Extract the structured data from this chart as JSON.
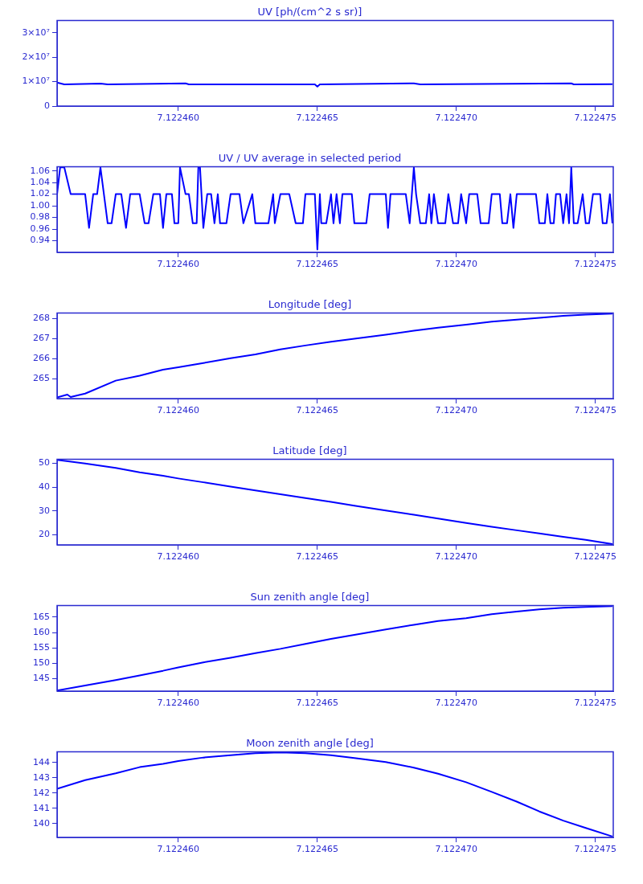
{
  "chart_data": [
    {
      "type": "line",
      "title": "UV [ph/(cm^2 s sr)]",
      "color": "#0000ff",
      "grid": false,
      "marker": "none",
      "line_style": "solid",
      "x": [
        7.12245564,
        7.1224559,
        7.1224572,
        7.12245746,
        7.12246026,
        7.12246038,
        7.12246491,
        7.122465,
        7.12246509,
        7.12246847,
        7.1224687,
        7.12247413,
        7.12247422,
        7.12247561
      ],
      "values": [
        9600000,
        8900000,
        9200000,
        8900000,
        9300000,
        8900000,
        8900000,
        8000000,
        8900000,
        9300000,
        8900000,
        9300000,
        8900000,
        9000000
      ],
      "xlim": [
        7.12245564,
        7.12247564
      ],
      "xticks": [
        {
          "value": 7.12246,
          "label": "7.122460"
        },
        {
          "value": 7.122465,
          "label": "7.122465"
        },
        {
          "value": 7.12247,
          "label": "7.122470"
        },
        {
          "value": 7.122475,
          "label": "7.122475"
        }
      ],
      "ylim": [
        0,
        35000000
      ],
      "yticks": [
        {
          "value": 0,
          "label": "0"
        },
        {
          "value": 10000000,
          "label": "1×10⁷"
        },
        {
          "value": 20000000,
          "label": "2×10⁷"
        },
        {
          "value": 30000000,
          "label": "3×10⁷"
        }
      ]
    },
    {
      "type": "line",
      "title": "UV / UV average in selected period",
      "color": "#0000ff",
      "grid": false,
      "marker": "none",
      "line_style": "solid",
      "x": [
        7.12245564,
        7.12245575,
        7.1224559,
        7.12245613,
        7.12245665,
        7.12245679,
        7.12245694,
        7.12245708,
        7.1224572,
        7.12245746,
        7.1224576,
        7.12245775,
        7.12245795,
        7.12245812,
        7.12245827,
        7.12245861,
        7.12245879,
        7.12245893,
        7.1224591,
        7.12245934,
        7.12245945,
        7.12245957,
        7.12245977,
        7.12245986,
        7.12246,
        7.12246006,
        7.12246026,
        7.12246038,
        7.12246052,
        7.12246066,
        7.12246072,
        7.12246078,
        7.1224609,
        7.12246104,
        7.12246118,
        7.1224613,
        7.12246142,
        7.1224615,
        7.12246173,
        7.12246188,
        7.1224622,
        7.12246234,
        7.12246266,
        7.12246277,
        7.12246324,
        7.12246341,
        7.12246347,
        7.12246367,
        7.12246399,
        7.12246422,
        7.12246448,
        7.12246457,
        7.12246491,
        7.122465,
        7.12246509,
        7.12246514,
        7.12246532,
        7.12246549,
        7.12246558,
        7.12246569,
        7.12246581,
        7.1224659,
        7.12246624,
        7.12246633,
        7.12246676,
        7.12246688,
        7.12246746,
        7.12246754,
        7.12246763,
        7.12246818,
        7.12246832,
        7.12246847,
        7.12246855,
        7.1224687,
        7.1224689,
        7.12246902,
        7.1224691,
        7.12246919,
        7.12246934,
        7.1224696,
        7.12246971,
        7.12246988,
        7.12247006,
        7.12247017,
        7.12247035,
        7.12247046,
        7.12247075,
        7.12247087,
        7.12247116,
        7.12247127,
        7.12247156,
        7.12247165,
        7.12247182,
        7.12247194,
        7.12247205,
        7.12247217,
        7.12247286,
        7.12247298,
        7.12247318,
        7.12247327,
        7.12247338,
        7.1224735,
        7.12247358,
        7.12247373,
        7.12247384,
        7.12247396,
        7.12247405,
        7.12247413,
        7.12247422,
        7.12247436,
        7.12247454,
        7.12247465,
        7.12247477,
        7.12247491,
        7.12247517,
        7.12247526,
        7.1224754,
        7.12247552,
        7.12247561
      ],
      "values": [
        1.02,
        1.066,
        1.066,
        1.02,
        1.02,
        0.962,
        1.02,
        1.02,
        1.066,
        0.97,
        0.97,
        1.02,
        1.02,
        0.962,
        1.02,
        1.02,
        0.97,
        0.97,
        1.02,
        1.02,
        0.962,
        1.02,
        1.02,
        0.97,
        0.97,
        1.066,
        1.02,
        1.02,
        0.97,
        0.97,
        1.066,
        1.066,
        0.962,
        1.02,
        1.02,
        0.97,
        1.02,
        0.97,
        0.97,
        1.02,
        1.02,
        0.97,
        1.02,
        0.97,
        0.97,
        1.02,
        0.97,
        1.02,
        1.02,
        0.97,
        0.97,
        1.02,
        1.02,
        0.925,
        1.02,
        0.97,
        0.97,
        1.02,
        0.97,
        1.02,
        0.97,
        1.02,
        1.02,
        0.97,
        0.97,
        1.02,
        1.02,
        0.962,
        1.02,
        1.02,
        0.97,
        1.066,
        1.02,
        0.97,
        0.97,
        1.02,
        0.97,
        1.02,
        0.97,
        0.97,
        1.02,
        0.97,
        0.97,
        1.02,
        0.97,
        1.02,
        1.02,
        0.97,
        0.97,
        1.02,
        1.02,
        0.97,
        0.97,
        1.02,
        0.962,
        1.02,
        1.02,
        0.97,
        0.97,
        1.02,
        0.97,
        0.97,
        1.02,
        1.02,
        0.97,
        1.02,
        0.97,
        1.066,
        0.97,
        0.97,
        1.02,
        0.97,
        0.97,
        1.02,
        1.02,
        0.97,
        0.97,
        1.02,
        0.97
      ],
      "xlim": [
        7.12245564,
        7.12247564
      ],
      "xticks": [
        {
          "value": 7.12246,
          "label": "7.122460"
        },
        {
          "value": 7.122465,
          "label": "7.122465"
        },
        {
          "value": 7.12247,
          "label": "7.122470"
        },
        {
          "value": 7.122475,
          "label": "7.122475"
        }
      ],
      "ylim": [
        0.92,
        1.067
      ],
      "yticks": [
        0.94,
        0.96,
        0.98,
        {
          "value": 1,
          "label": "1.00"
        },
        1.02,
        1.04,
        1.06
      ]
    },
    {
      "type": "line",
      "title": "Longitude [deg]",
      "color": "#0000ff",
      "grid": false,
      "marker": "none",
      "line_style": "solid",
      "x": [
        7.12245564,
        7.12245601,
        7.12245613,
        7.12245665,
        7.12245775,
        7.12245861,
        7.12245945,
        7.12246,
        7.1224609,
        7.12246188,
        7.12246277,
        7.12246367,
        7.12246457,
        7.12246549,
        7.12246633,
        7.12246746,
        7.12246847,
        7.12246934,
        7.12247035,
        7.12247127,
        7.12247217,
        7.12247298,
        7.12247384,
        7.12247465,
        7.12247561
      ],
      "values": [
        264.06,
        264.2,
        264.08,
        264.25,
        264.9,
        265.15,
        265.45,
        265.57,
        265.78,
        266.02,
        266.21,
        266.46,
        266.66,
        266.85,
        267.0,
        267.2,
        267.4,
        267.55,
        267.7,
        267.85,
        267.95,
        268.04,
        268.14,
        268.2,
        268.25
      ],
      "xlim": [
        7.12245564,
        7.12247564
      ],
      "xticks": [
        {
          "value": 7.12246,
          "label": "7.122460"
        },
        {
          "value": 7.122465,
          "label": "7.122465"
        },
        {
          "value": 7.12247,
          "label": "7.122470"
        },
        {
          "value": 7.122475,
          "label": "7.122475"
        }
      ],
      "ylim": [
        264.0,
        268.28
      ],
      "yticks": [
        265,
        266,
        267,
        268
      ]
    },
    {
      "type": "line",
      "title": "Latitude [deg]",
      "color": "#0000ff",
      "grid": false,
      "marker": "none",
      "line_style": "solid",
      "x": [
        7.12245564,
        7.12245665,
        7.12245775,
        7.12245861,
        7.12245945,
        7.12246,
        7.1224609,
        7.12246188,
        7.12246277,
        7.12246367,
        7.12246457,
        7.12246549,
        7.12246633,
        7.12246746,
        7.12246847,
        7.12246934,
        7.12247035,
        7.12247127,
        7.12247217,
        7.12247298,
        7.12247384,
        7.12247465,
        7.12247561
      ],
      "values": [
        51.4,
        49.9,
        48.0,
        46.2,
        44.7,
        43.6,
        42.0,
        40.2,
        38.6,
        37.0,
        35.4,
        33.8,
        32.2,
        30.2,
        28.4,
        26.8,
        25.0,
        23.4,
        21.9,
        20.6,
        19.2,
        17.9,
        16.1
      ],
      "xlim": [
        7.12245564,
        7.12247564
      ],
      "xticks": [
        {
          "value": 7.12246,
          "label": "7.122460"
        },
        {
          "value": 7.122465,
          "label": "7.122465"
        },
        {
          "value": 7.12247,
          "label": "7.122470"
        },
        {
          "value": 7.122475,
          "label": "7.122475"
        }
      ],
      "ylim": [
        15.8,
        51.6
      ],
      "yticks": [
        20,
        30,
        40,
        50
      ]
    },
    {
      "type": "line",
      "title": "Sun zenith angle [deg]",
      "color": "#0000ff",
      "grid": false,
      "marker": "none",
      "line_style": "solid",
      "x": [
        7.12245564,
        7.12245665,
        7.12245775,
        7.12245861,
        7.12245945,
        7.12246,
        7.1224609,
        7.12246188,
        7.12246277,
        7.12246367,
        7.12246457,
        7.12246549,
        7.12246633,
        7.12246746,
        7.12246847,
        7.12246934,
        7.12247035,
        7.12247127,
        7.12247217,
        7.12247298,
        7.12247384,
        7.12247465,
        7.12247561
      ],
      "values": [
        141.2,
        142.8,
        144.6,
        146.1,
        147.6,
        148.7,
        150.3,
        151.8,
        153.3,
        154.7,
        156.3,
        157.9,
        159.2,
        161.0,
        162.5,
        163.7,
        164.6,
        165.9,
        166.8,
        167.5,
        168.0,
        168.3,
        168.5
      ],
      "xlim": [
        7.12245564,
        7.12247564
      ],
      "xticks": [
        {
          "value": 7.12246,
          "label": "7.122460"
        },
        {
          "value": 7.122465,
          "label": "7.122465"
        },
        {
          "value": 7.12247,
          "label": "7.122470"
        },
        {
          "value": 7.122475,
          "label": "7.122475"
        }
      ],
      "ylim": [
        141.0,
        168.7
      ],
      "yticks": [
        145,
        150,
        155,
        160,
        165
      ]
    },
    {
      "type": "line",
      "title": "Moon zenith angle [deg]",
      "color": "#0000ff",
      "grid": false,
      "marker": "none",
      "line_style": "solid",
      "x": [
        7.12245564,
        7.12245665,
        7.12245775,
        7.12245861,
        7.12245945,
        7.12246,
        7.1224609,
        7.12246188,
        7.12246277,
        7.12246367,
        7.12246457,
        7.12246549,
        7.12246633,
        7.12246746,
        7.12246847,
        7.12246934,
        7.12247035,
        7.12247127,
        7.12247217,
        7.12247298,
        7.12247384,
        7.12247465,
        7.12247561
      ],
      "values": [
        142.28,
        142.85,
        143.3,
        143.7,
        143.92,
        144.1,
        144.33,
        144.48,
        144.61,
        144.66,
        144.61,
        144.48,
        144.3,
        144.03,
        143.67,
        143.27,
        142.71,
        142.08,
        141.44,
        140.8,
        140.2,
        139.72,
        139.16
      ],
      "xlim": [
        7.12245564,
        7.12247564
      ],
      "xticks": [
        {
          "value": 7.12246,
          "label": "7.122460"
        },
        {
          "value": 7.122465,
          "label": "7.122465"
        },
        {
          "value": 7.12247,
          "label": "7.122470"
        },
        {
          "value": 7.122475,
          "label": "7.122475"
        }
      ],
      "ylim": [
        139.1,
        144.7
      ],
      "yticks": [
        140,
        141,
        142,
        143,
        144
      ]
    }
  ]
}
